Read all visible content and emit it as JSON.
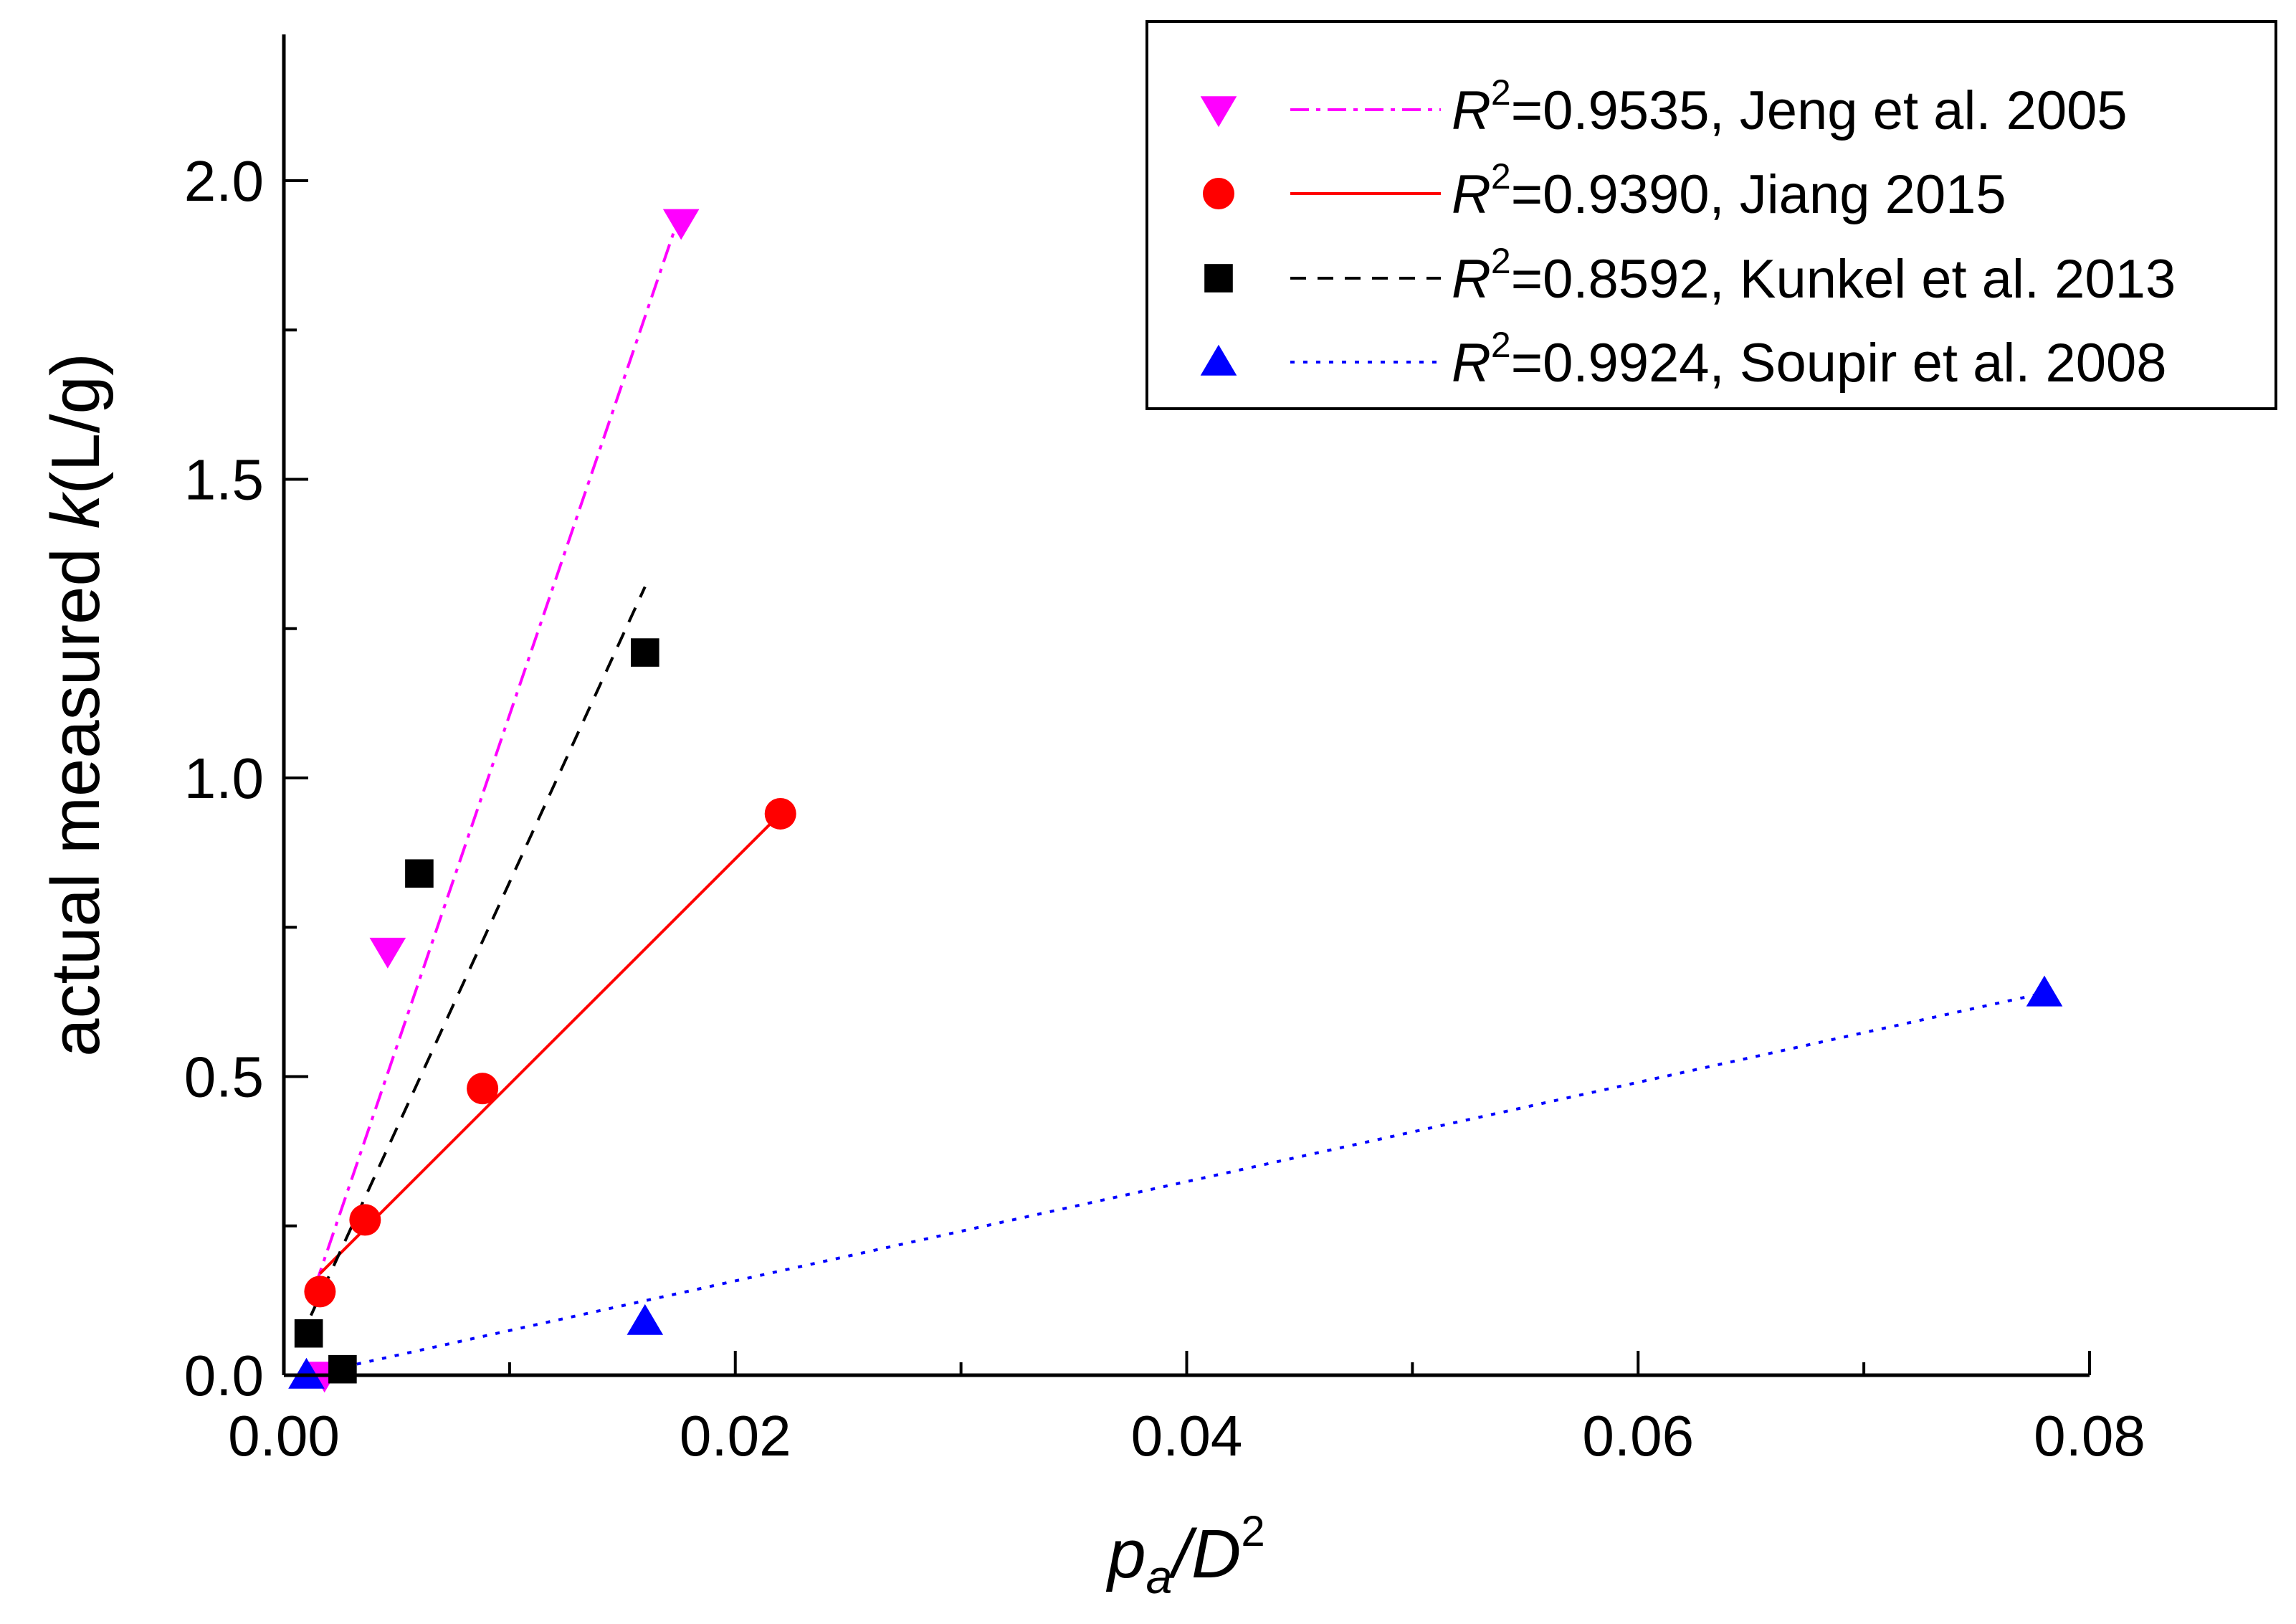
{
  "chart_data": {
    "type": "scatter",
    "xlabel": {
      "base": "p",
      "sub": "a",
      "rest": "/D",
      "sup": "2"
    },
    "ylabel": {
      "prefix": "actual measured ",
      "italic": "k",
      "suffix": "(L/g)"
    },
    "xlim": [
      0.0,
      0.08
    ],
    "ylim": [
      0.0,
      2.25
    ],
    "x_ticks": [
      0.0,
      0.02,
      0.04,
      0.06,
      0.08
    ],
    "x_tick_labels": [
      "0.00",
      "0.02",
      "0.04",
      "0.06",
      "0.08"
    ],
    "x_minor_ticks": [
      0.01,
      0.03,
      0.05,
      0.07
    ],
    "y_ticks": [
      0.0,
      0.5,
      1.0,
      1.5,
      2.0
    ],
    "y_tick_labels": [
      "0.0",
      "0.5",
      "1.0",
      "1.5",
      "2.0"
    ],
    "y_minor_ticks": [
      0.25,
      0.75,
      1.25,
      1.75
    ],
    "grid": false,
    "legend_position": "top-right",
    "series": [
      {
        "name": "Jeng et al. 2005",
        "r2_label": "R",
        "r2_sup": "2",
        "r2_value": "=0.9535, Jeng et al. 2005",
        "marker": "triangle-down",
        "color": "#ff00ff",
        "line_style": "dash-dot",
        "points": [
          [
            0.0018,
            0.0
          ],
          [
            0.0046,
            0.71
          ],
          [
            0.0176,
            1.93
          ]
        ],
        "fit": [
          [
            0.0014,
            0.15
          ],
          [
            0.0176,
            1.95
          ]
        ]
      },
      {
        "name": "Jiang 2015",
        "r2_label": "R",
        "r2_sup": "2",
        "r2_value": "=0.9390, Jiang 2015",
        "marker": "circle",
        "color": "#ff0000",
        "line_style": "solid",
        "points": [
          [
            0.0016,
            0.14
          ],
          [
            0.0036,
            0.26
          ],
          [
            0.0088,
            0.48
          ],
          [
            0.022,
            0.94
          ]
        ],
        "fit": [
          [
            0.0016,
            0.17
          ],
          [
            0.022,
            0.94
          ]
        ]
      },
      {
        "name": "Kunkel et al. 2013",
        "r2_label": "R",
        "r2_sup": "2",
        "r2_value": "=0.8592, Kunkel et al. 2013",
        "marker": "square",
        "color": "#000000",
        "line_style": "dashed",
        "points": [
          [
            0.0011,
            0.07
          ],
          [
            0.0026,
            0.01
          ],
          [
            0.006,
            0.84
          ],
          [
            0.016,
            1.21
          ]
        ],
        "fit": [
          [
            0.0012,
            0.1
          ],
          [
            0.016,
            1.32
          ]
        ]
      },
      {
        "name": "Soupir et al. 2008",
        "r2_label": "R",
        "r2_sup": "2",
        "r2_value": "=0.9924, Soupir et al. 2008",
        "marker": "triangle-up",
        "color": "#0000ff",
        "line_style": "dotted",
        "points": [
          [
            0.001,
            0.0
          ],
          [
            0.016,
            0.09
          ],
          [
            0.078,
            0.64
          ]
        ],
        "fit": [
          [
            0.001,
            0.0
          ],
          [
            0.078,
            0.64
          ]
        ]
      }
    ]
  }
}
